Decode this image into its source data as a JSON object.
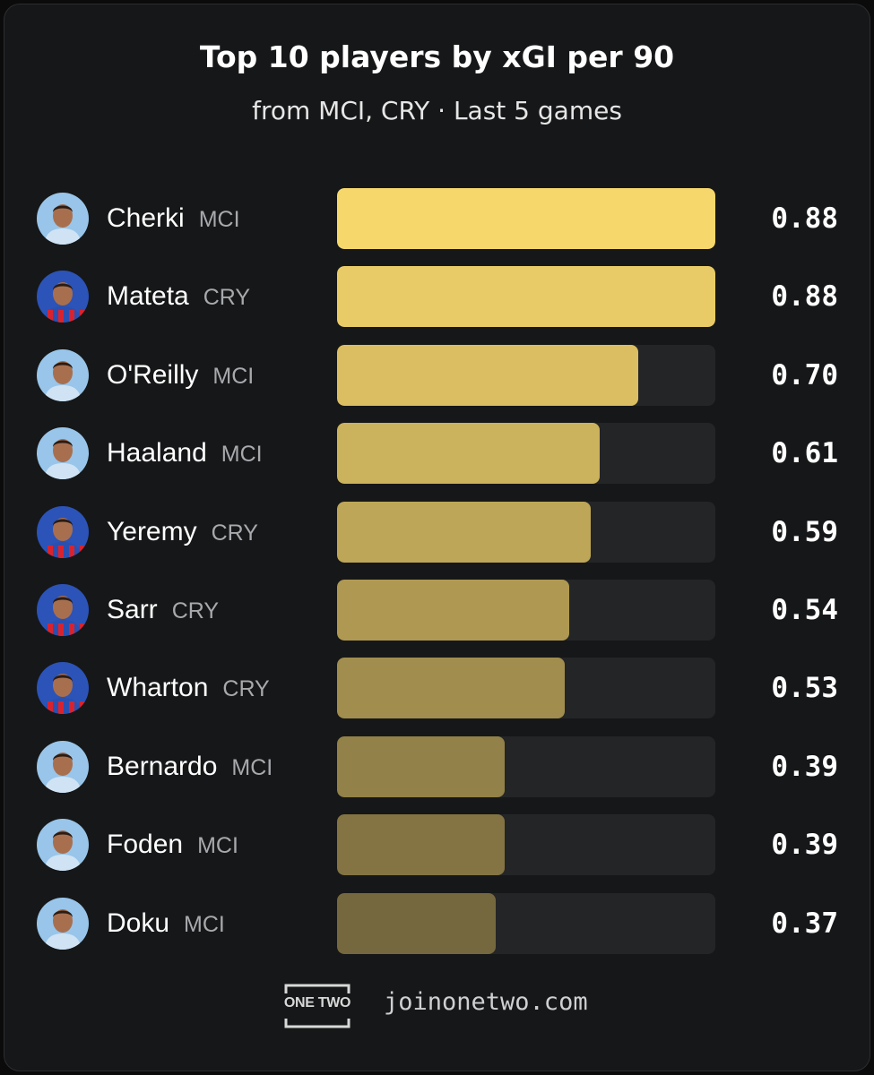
{
  "header": {
    "title": "Top 10 players by xGI per 90",
    "subtitle": "from MCI, CRY · Last 5 games"
  },
  "colors": {
    "MCI": "#98c5e9",
    "CRY": "#2b53b8",
    "bar_top": "#f6d76b",
    "bar_bottom": "#76683e"
  },
  "chart_data": {
    "type": "bar",
    "orientation": "horizontal",
    "title": "Top 10 players by xGI per 90",
    "subtitle": "from MCI, CRY · Last 5 games",
    "xlim": [
      0,
      0.88
    ],
    "categories": [
      "Cherki",
      "Mateta",
      "O'Reilly",
      "Haaland",
      "Yeremy",
      "Sarr",
      "Wharton",
      "Bernardo",
      "Foden",
      "Doku"
    ],
    "teams": [
      "MCI",
      "CRY",
      "MCI",
      "MCI",
      "CRY",
      "CRY",
      "CRY",
      "MCI",
      "MCI",
      "MCI"
    ],
    "values": [
      0.88,
      0.88,
      0.7,
      0.61,
      0.59,
      0.54,
      0.53,
      0.39,
      0.39,
      0.37
    ],
    "labels": [
      "0.88",
      "0.88",
      "0.70",
      "0.61",
      "0.59",
      "0.54",
      "0.53",
      "0.39",
      "0.39",
      "0.37"
    ]
  },
  "footer": {
    "logo_text": "ONE TWO",
    "site": "joinonetwo.com"
  }
}
